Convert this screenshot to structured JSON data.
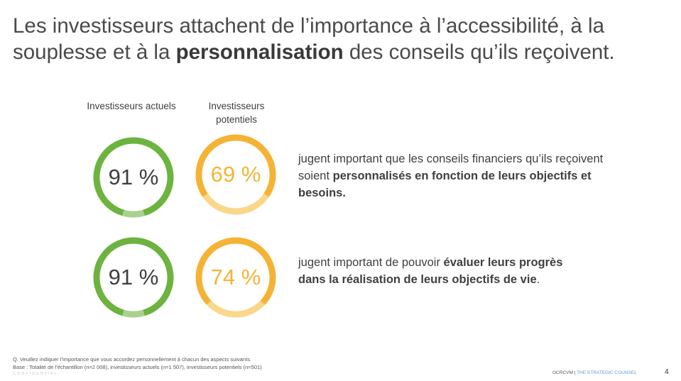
{
  "title": {
    "part1": "Les investisseurs attachent de l’importance à l’accessibilité, à la souplesse et à la ",
    "bold": "personnalisation",
    "part2": " des conseils qu’ils reçoivent."
  },
  "columns": [
    {
      "label": "Investisseurs actuels",
      "color": "#6db33f",
      "light_color": "#a9d18e"
    },
    {
      "label": "Investisseurs potentiels",
      "color": "#f5b335",
      "light_color": "#f9d88a"
    }
  ],
  "chart_data": {
    "type": "donut",
    "categories": [
      "Investisseurs actuels",
      "Investisseurs potentiels"
    ],
    "rows": [
      {
        "statement": "personnalisés en fonction de leurs objectifs et besoins",
        "values": [
          91,
          69
        ],
        "labels": [
          "91 %",
          "69 %"
        ]
      },
      {
        "statement": "évaluer leurs progrès dans la réalisation de leurs objectifs de vie",
        "values": [
          91,
          74
        ],
        "labels": [
          "91 %",
          "74 %"
        ]
      }
    ]
  },
  "statements": [
    {
      "before": "jugent important que les conseils financiers qu’ils reçoivent soient ",
      "bold": "personnalisés en fonction de leurs objectifs et besoins.",
      "after": ""
    },
    {
      "before": "jugent important de pouvoir ",
      "bold": "évaluer leurs progrès dans la réalisation de leurs objectifs de vie",
      "after": "."
    }
  ],
  "footnote": {
    "question": "Q. Veuillez indiquer l’importance que vous accordez personnellement à chacun des aspects suivants.",
    "base": "Base : Totalité de l’échantillon (n=2 008), investisseurs actuels (n=1 507), investisseurs potentiels (n=501)"
  },
  "confidential": "CONFIDENTIEL",
  "brand": {
    "left": "OCRCVM",
    "sep": " | ",
    "right": "THE STRATEGIC COUNSEL"
  },
  "page_number": "4"
}
